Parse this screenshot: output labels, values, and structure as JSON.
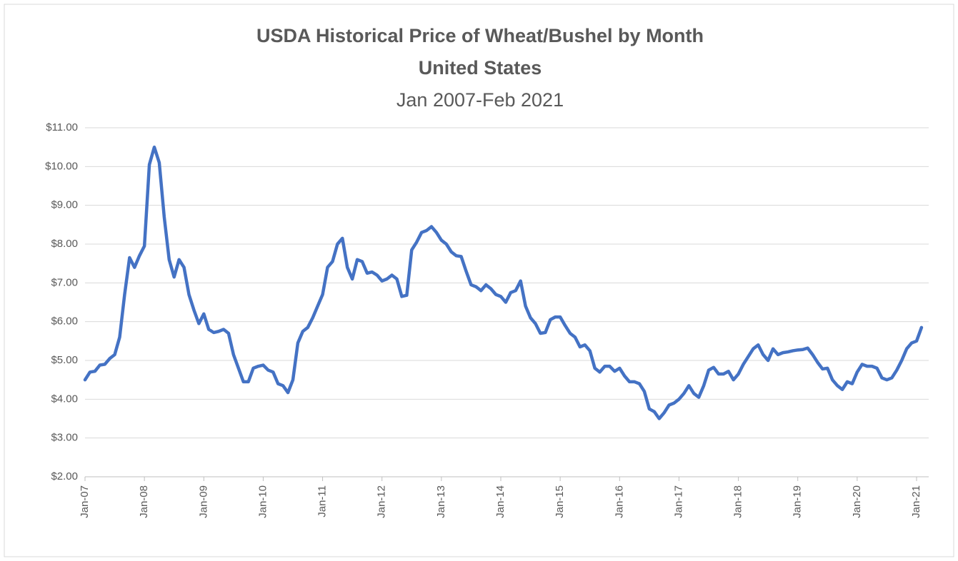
{
  "chart_data": {
    "type": "line",
    "title": [
      "USDA Historical Price of Wheat/Bushel by Month",
      "United States"
    ],
    "subtitle": "Jan 2007-Feb 2021",
    "color": "#4472c4",
    "grid": true,
    "ylim": [
      2,
      11
    ],
    "yticks": [
      {
        "value": 2,
        "label": "$2.00"
      },
      {
        "value": 3,
        "label": "$3.00"
      },
      {
        "value": 4,
        "label": "$4.00"
      },
      {
        "value": 5,
        "label": "$5.00"
      },
      {
        "value": 6,
        "label": "$6.00"
      },
      {
        "value": 7,
        "label": "$7.00"
      },
      {
        "value": 8,
        "label": "$8.00"
      },
      {
        "value": 9,
        "label": "$9.00"
      },
      {
        "value": 10,
        "label": "$10.00"
      },
      {
        "value": 11,
        "label": "$11.00"
      }
    ],
    "categories": [
      "Jan-07",
      null,
      null,
      null,
      null,
      null,
      null,
      null,
      null,
      null,
      null,
      null,
      "Jan-08",
      null,
      null,
      null,
      null,
      null,
      null,
      null,
      null,
      null,
      null,
      null,
      "Jan-09",
      null,
      null,
      null,
      null,
      null,
      null,
      null,
      null,
      null,
      null,
      null,
      "Jan-10",
      null,
      null,
      null,
      null,
      null,
      null,
      null,
      null,
      null,
      null,
      null,
      "Jan-11",
      null,
      null,
      null,
      null,
      null,
      null,
      null,
      null,
      null,
      null,
      null,
      "Jan-12",
      null,
      null,
      null,
      null,
      null,
      null,
      null,
      null,
      null,
      null,
      null,
      "Jan-13",
      null,
      null,
      null,
      null,
      null,
      null,
      null,
      null,
      null,
      null,
      null,
      "Jan-14",
      null,
      null,
      null,
      null,
      null,
      null,
      null,
      null,
      null,
      null,
      null,
      "Jan-15",
      null,
      null,
      null,
      null,
      null,
      null,
      null,
      null,
      null,
      null,
      null,
      "Jan-16",
      null,
      null,
      null,
      null,
      null,
      null,
      null,
      null,
      null,
      null,
      null,
      "Jan-17",
      null,
      null,
      null,
      null,
      null,
      null,
      null,
      null,
      null,
      null,
      null,
      "Jan-18",
      null,
      null,
      null,
      null,
      null,
      null,
      null,
      null,
      null,
      null,
      null,
      "Jan-19",
      null,
      null,
      null,
      null,
      null,
      null,
      null,
      null,
      null,
      null,
      null,
      "Jan-20",
      null,
      null,
      null,
      null,
      null,
      null,
      null,
      null,
      null,
      null,
      null,
      "Jan-21",
      null
    ],
    "values": [
      4.5,
      4.7,
      4.72,
      4.88,
      4.9,
      5.05,
      5.15,
      5.6,
      6.7,
      7.65,
      7.4,
      7.7,
      7.95,
      10.05,
      10.5,
      10.1,
      8.7,
      7.6,
      7.15,
      7.6,
      7.4,
      6.7,
      6.3,
      5.95,
      6.2,
      5.8,
      5.72,
      5.75,
      5.8,
      5.7,
      5.15,
      4.8,
      4.45,
      4.45,
      4.8,
      4.85,
      4.88,
      4.75,
      4.7,
      4.4,
      4.35,
      4.17,
      4.5,
      5.45,
      5.75,
      5.85,
      6.1,
      6.4,
      6.7,
      7.4,
      7.55,
      8.0,
      8.15,
      7.4,
      7.1,
      7.6,
      7.55,
      7.25,
      7.28,
      7.2,
      7.05,
      7.1,
      7.2,
      7.1,
      6.65,
      6.68,
      7.85,
      8.05,
      8.3,
      8.35,
      8.45,
      8.3,
      8.1,
      8.0,
      7.8,
      7.7,
      7.68,
      7.3,
      6.95,
      6.9,
      6.8,
      6.95,
      6.85,
      6.7,
      6.65,
      6.5,
      6.75,
      6.8,
      7.05,
      6.4,
      6.1,
      5.95,
      5.7,
      5.72,
      6.05,
      6.12,
      6.12,
      5.9,
      5.7,
      5.6,
      5.35,
      5.4,
      5.25,
      4.8,
      4.7,
      4.85,
      4.85,
      4.72,
      4.8,
      4.6,
      4.45,
      4.45,
      4.4,
      4.2,
      3.75,
      3.68,
      3.5,
      3.65,
      3.85,
      3.9,
      4.0,
      4.15,
      4.35,
      4.15,
      4.05,
      4.35,
      4.75,
      4.82,
      4.65,
      4.65,
      4.72,
      4.5,
      4.65,
      4.9,
      5.1,
      5.3,
      5.4,
      5.15,
      5.0,
      5.3,
      5.15,
      5.2,
      5.22,
      5.25,
      5.27,
      5.28,
      5.32,
      5.15,
      4.95,
      4.78,
      4.8,
      4.5,
      4.35,
      4.25,
      4.45,
      4.4,
      4.7,
      4.9,
      4.85,
      4.85,
      4.8,
      4.55,
      4.5,
      4.55,
      4.75,
      5.0,
      5.3,
      5.45,
      5.5,
      5.85
    ]
  }
}
